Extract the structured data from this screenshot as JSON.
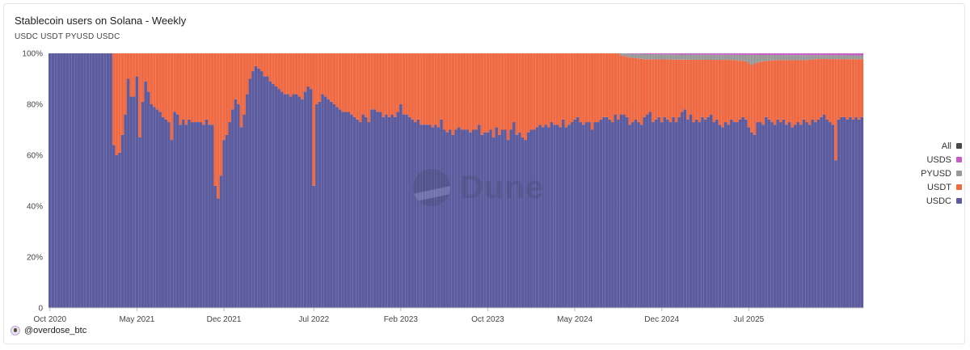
{
  "title": "Stablecoin users on Solana - Weekly",
  "subtitle": "USDC USDT PYUSD USDC",
  "watermark": "Dune",
  "author": "@overdose_btc",
  "legend": [
    {
      "label": "All",
      "color": "#4a4a4a"
    },
    {
      "label": "USDS",
      "color": "#c65bc6"
    },
    {
      "label": "PYUSD",
      "color": "#999999"
    },
    {
      "label": "USDT",
      "color": "#ef6a43"
    },
    {
      "label": "USDC",
      "color": "#5b5b9e"
    }
  ],
  "chart_data": {
    "type": "bar",
    "stacked": true,
    "normalized": true,
    "title": "Stablecoin users on Solana - Weekly",
    "y_ticks": [
      "0",
      "20%",
      "40%",
      "60%",
      "80%",
      "100%"
    ],
    "ylim": [
      0,
      100
    ],
    "x_ticks": [
      {
        "label": "Oct 2020",
        "index": 0
      },
      {
        "label": "May 2021",
        "index": 30
      },
      {
        "label": "Dec 2021",
        "index": 60
      },
      {
        "label": "Jul 2022",
        "index": 91
      },
      {
        "label": "Feb 2023",
        "index": 121
      },
      {
        "label": "Oct 2023",
        "index": 151
      },
      {
        "label": "May 2024",
        "index": 181
      },
      {
        "label": "Dec 2024",
        "index": 211
      },
      {
        "label": "Jul 2025",
        "index": 241
      }
    ],
    "usdc_keypoints": [
      [
        0,
        100
      ],
      [
        21,
        100
      ],
      [
        22,
        64
      ],
      [
        23,
        60
      ],
      [
        24,
        61
      ],
      [
        25,
        68
      ],
      [
        26,
        76
      ],
      [
        27,
        90
      ],
      [
        28,
        83
      ],
      [
        29,
        83
      ],
      [
        30,
        91
      ],
      [
        31,
        67
      ],
      [
        32,
        81
      ],
      [
        33,
        89
      ],
      [
        34,
        85
      ],
      [
        35,
        80
      ],
      [
        36,
        79
      ],
      [
        37,
        78
      ],
      [
        38,
        77
      ],
      [
        39,
        75
      ],
      [
        40,
        74
      ],
      [
        41,
        73
      ],
      [
        42,
        66
      ],
      [
        43,
        77
      ],
      [
        44,
        76
      ],
      [
        45,
        72
      ],
      [
        46,
        74
      ],
      [
        47,
        72
      ],
      [
        48,
        74
      ],
      [
        49,
        73
      ],
      [
        50,
        73
      ],
      [
        51,
        73
      ],
      [
        52,
        73
      ],
      [
        53,
        72
      ],
      [
        54,
        74
      ],
      [
        55,
        72
      ],
      [
        56,
        72
      ],
      [
        57,
        48
      ],
      [
        58,
        43
      ],
      [
        59,
        52
      ],
      [
        60,
        66
      ],
      [
        61,
        68
      ],
      [
        62,
        73
      ],
      [
        63,
        78
      ],
      [
        64,
        82
      ],
      [
        65,
        80
      ],
      [
        66,
        71
      ],
      [
        67,
        76
      ],
      [
        68,
        84
      ],
      [
        69,
        90
      ],
      [
        70,
        93
      ],
      [
        71,
        95
      ],
      [
        72,
        94
      ],
      [
        73,
        93
      ],
      [
        74,
        91
      ],
      [
        75,
        91
      ],
      [
        76,
        89
      ],
      [
        77,
        88
      ],
      [
        78,
        87
      ],
      [
        79,
        86
      ],
      [
        80,
        85
      ],
      [
        81,
        84
      ],
      [
        82,
        84
      ],
      [
        83,
        83
      ],
      [
        84,
        84
      ],
      [
        85,
        84
      ],
      [
        86,
        83
      ],
      [
        87,
        82
      ],
      [
        88,
        85
      ],
      [
        89,
        87
      ],
      [
        90,
        86
      ],
      [
        91,
        48
      ],
      [
        92,
        80
      ],
      [
        93,
        81
      ],
      [
        94,
        84
      ],
      [
        95,
        83
      ],
      [
        96,
        82
      ],
      [
        97,
        81
      ],
      [
        98,
        80
      ],
      [
        99,
        79
      ],
      [
        100,
        78
      ],
      [
        101,
        77
      ],
      [
        102,
        77
      ],
      [
        103,
        77
      ],
      [
        104,
        76
      ],
      [
        105,
        75
      ],
      [
        106,
        74
      ],
      [
        107,
        73
      ],
      [
        108,
        76
      ],
      [
        109,
        75
      ],
      [
        110,
        73
      ],
      [
        111,
        78
      ],
      [
        112,
        78
      ],
      [
        113,
        77
      ],
      [
        114,
        77
      ],
      [
        115,
        75
      ],
      [
        116,
        76
      ],
      [
        117,
        75
      ],
      [
        118,
        76
      ],
      [
        119,
        75
      ],
      [
        120,
        77
      ],
      [
        121,
        80
      ],
      [
        122,
        76
      ],
      [
        123,
        76
      ],
      [
        124,
        75
      ],
      [
        125,
        74
      ],
      [
        126,
        73
      ],
      [
        127,
        74
      ],
      [
        128,
        72
      ],
      [
        129,
        72
      ],
      [
        130,
        72
      ],
      [
        131,
        72
      ],
      [
        132,
        71
      ],
      [
        133,
        72
      ],
      [
        134,
        71
      ],
      [
        135,
        74
      ],
      [
        136,
        70
      ],
      [
        137,
        69
      ],
      [
        138,
        70
      ],
      [
        139,
        68
      ],
      [
        140,
        70
      ],
      [
        141,
        71
      ],
      [
        142,
        70
      ],
      [
        143,
        70
      ],
      [
        144,
        70
      ],
      [
        145,
        69
      ],
      [
        146,
        70
      ],
      [
        147,
        70
      ],
      [
        148,
        72
      ],
      [
        149,
        68
      ],
      [
        150,
        69
      ],
      [
        151,
        69
      ],
      [
        152,
        70
      ],
      [
        153,
        67
      ],
      [
        154,
        71
      ],
      [
        155,
        68
      ],
      [
        156,
        70
      ],
      [
        157,
        70
      ],
      [
        158,
        66
      ],
      [
        159,
        70
      ],
      [
        160,
        73
      ],
      [
        161,
        68
      ],
      [
        162,
        69
      ],
      [
        163,
        67
      ],
      [
        164,
        66
      ],
      [
        165,
        69
      ],
      [
        166,
        70
      ],
      [
        167,
        70
      ],
      [
        168,
        71
      ],
      [
        169,
        72
      ],
      [
        170,
        71
      ],
      [
        171,
        72
      ],
      [
        172,
        71
      ],
      [
        173,
        73
      ],
      [
        174,
        72
      ],
      [
        175,
        72
      ],
      [
        176,
        71
      ],
      [
        177,
        74
      ],
      [
        178,
        71
      ],
      [
        179,
        72
      ],
      [
        180,
        73
      ],
      [
        181,
        74
      ],
      [
        182,
        75
      ],
      [
        183,
        73
      ],
      [
        184,
        72
      ],
      [
        185,
        73
      ],
      [
        186,
        73
      ],
      [
        187,
        70
      ],
      [
        188,
        73
      ],
      [
        189,
        73
      ],
      [
        190,
        74
      ],
      [
        191,
        75
      ],
      [
        192,
        75
      ],
      [
        193,
        74
      ],
      [
        194,
        73
      ],
      [
        195,
        76
      ],
      [
        196,
        74
      ],
      [
        197,
        76
      ],
      [
        198,
        76
      ],
      [
        199,
        75
      ],
      [
        200,
        72
      ],
      [
        201,
        73
      ],
      [
        202,
        74
      ],
      [
        203,
        73
      ],
      [
        204,
        72
      ],
      [
        205,
        75
      ],
      [
        206,
        76
      ],
      [
        207,
        77
      ],
      [
        208,
        73
      ],
      [
        209,
        74
      ],
      [
        210,
        75
      ],
      [
        211,
        73
      ],
      [
        212,
        75
      ],
      [
        213,
        74
      ],
      [
        214,
        73
      ],
      [
        215,
        75
      ],
      [
        216,
        73
      ],
      [
        217,
        75
      ],
      [
        218,
        77
      ],
      [
        219,
        78
      ],
      [
        220,
        74
      ],
      [
        221,
        76
      ],
      [
        222,
        73
      ],
      [
        223,
        74
      ],
      [
        224,
        73
      ],
      [
        225,
        75
      ],
      [
        226,
        74
      ],
      [
        227,
        75
      ],
      [
        228,
        76
      ],
      [
        229,
        73
      ],
      [
        230,
        74
      ],
      [
        231,
        72
      ],
      [
        232,
        71
      ],
      [
        233,
        73
      ],
      [
        234,
        72
      ],
      [
        235,
        74
      ],
      [
        236,
        73
      ],
      [
        237,
        73
      ],
      [
        238,
        74
      ],
      [
        239,
        75
      ],
      [
        240,
        74
      ],
      [
        241,
        71
      ],
      [
        242,
        69
      ],
      [
        243,
        68
      ],
      [
        244,
        73
      ],
      [
        245,
        73
      ],
      [
        246,
        72
      ],
      [
        247,
        75
      ],
      [
        248,
        74
      ],
      [
        249,
        73
      ],
      [
        250,
        72
      ],
      [
        251,
        74
      ],
      [
        252,
        73
      ],
      [
        253,
        74
      ],
      [
        254,
        72
      ],
      [
        255,
        73
      ],
      [
        256,
        71
      ],
      [
        257,
        72
      ],
      [
        258,
        73
      ],
      [
        259,
        72
      ],
      [
        260,
        74
      ],
      [
        261,
        73
      ],
      [
        262,
        72
      ],
      [
        263,
        74
      ],
      [
        264,
        73
      ],
      [
        265,
        74
      ],
      [
        266,
        75
      ],
      [
        267,
        76
      ],
      [
        268,
        74
      ],
      [
        269,
        73
      ],
      [
        270,
        72
      ],
      [
        271,
        58
      ],
      [
        272,
        74
      ],
      [
        273,
        75
      ],
      [
        274,
        75
      ],
      [
        275,
        74
      ],
      [
        276,
        75
      ],
      [
        277,
        74
      ],
      [
        278,
        75
      ],
      [
        279,
        74
      ],
      [
        280,
        75
      ]
    ],
    "pyusd_keypoints": [
      [
        0,
        0
      ],
      [
        196,
        0
      ],
      [
        197,
        0.8
      ],
      [
        200,
        1.5
      ],
      [
        205,
        2
      ],
      [
        210,
        2
      ],
      [
        215,
        2
      ],
      [
        220,
        2
      ],
      [
        225,
        2
      ],
      [
        230,
        2
      ],
      [
        235,
        2
      ],
      [
        240,
        2.5
      ],
      [
        242,
        4
      ],
      [
        244,
        3
      ],
      [
        246,
        2.5
      ],
      [
        250,
        2
      ],
      [
        255,
        2
      ],
      [
        260,
        2
      ],
      [
        265,
        1.5
      ],
      [
        270,
        1.5
      ],
      [
        275,
        1.5
      ],
      [
        280,
        1.5
      ]
    ],
    "usds_keypoints": [
      [
        0,
        0
      ],
      [
        196,
        0
      ],
      [
        205,
        0.3
      ],
      [
        220,
        0.5
      ],
      [
        240,
        0.6
      ],
      [
        260,
        0.7
      ],
      [
        280,
        0.8
      ]
    ],
    "bar_count": 281
  }
}
